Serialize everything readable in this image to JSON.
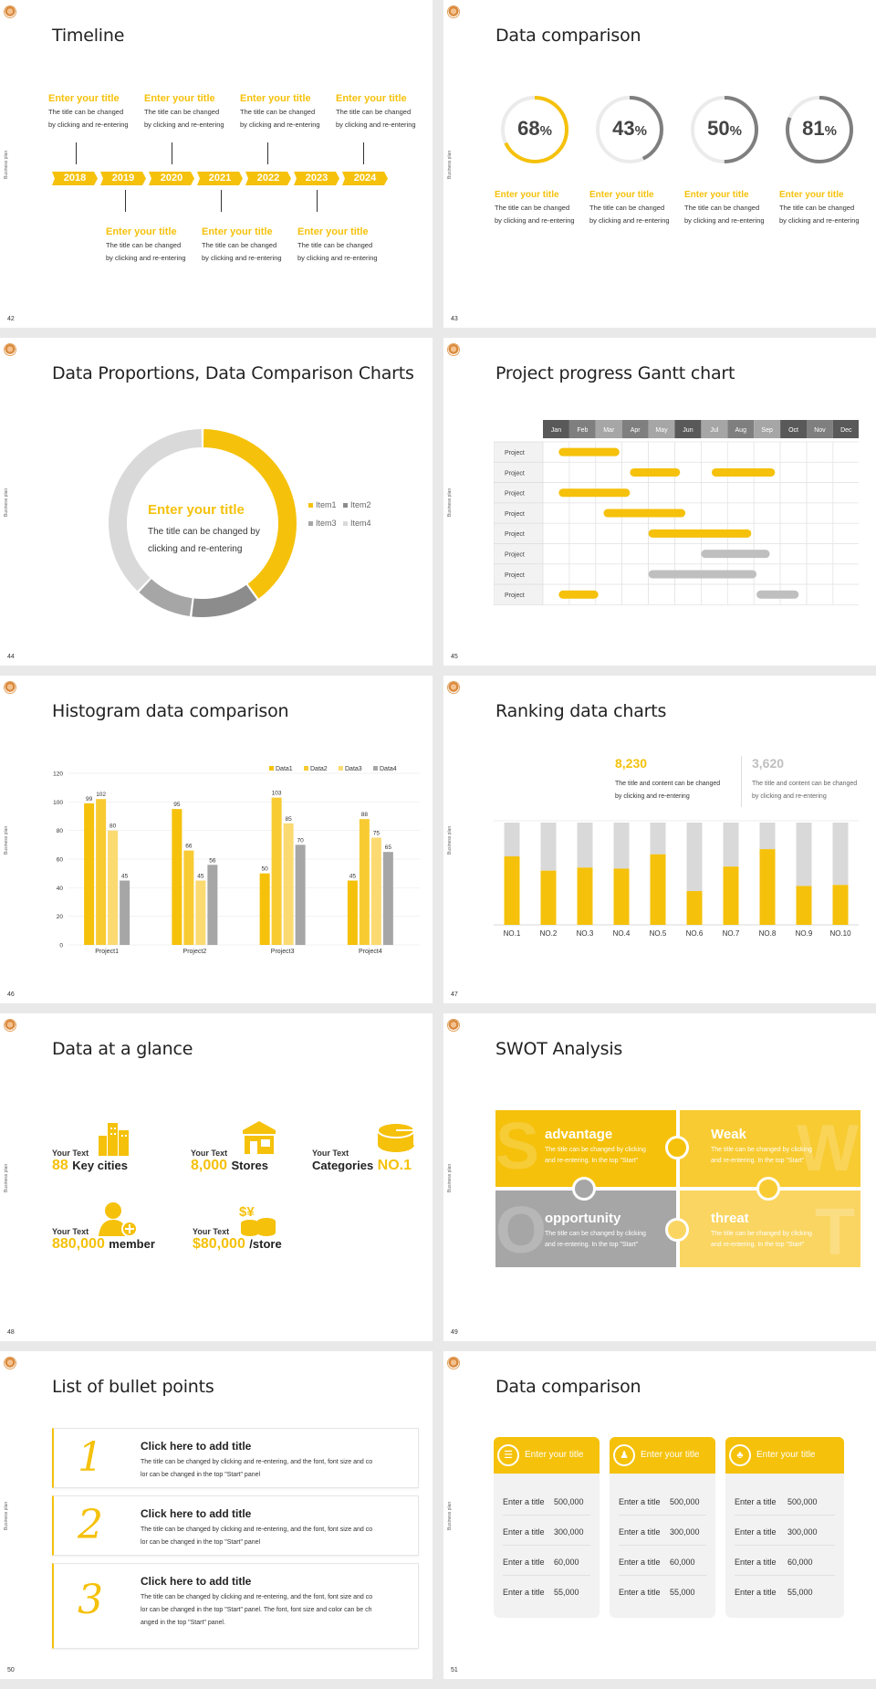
{
  "common": {
    "side_label": "Business plan",
    "colors": {
      "yellow": "#f5c10b",
      "yellow_light": "#fad561",
      "yellow_pale": "#fbe08a",
      "gray": "#a6a6a6",
      "gray_dark": "#858585",
      "gray_light": "#d9d9d9"
    }
  },
  "s42": {
    "page": "42",
    "title": "Timeline",
    "years": [
      "2018",
      "2019",
      "2020",
      "2021",
      "2022",
      "2023",
      "2024"
    ],
    "top_items": [
      {
        "title": "Enter your title",
        "text1": "The title can be changed",
        "text2": "by clicking and re-entering"
      },
      {
        "title": "Enter your title",
        "text1": "The title can be changed",
        "text2": "by clicking and re-entering"
      },
      {
        "title": "Enter your title",
        "text1": "The title can be changed",
        "text2": "by clicking and re-entering"
      },
      {
        "title": "Enter your title",
        "text1": "The title can be changed",
        "text2": "by clicking and re-entering"
      }
    ],
    "bottom_items": [
      {
        "title": "Enter your title",
        "text1": "The title can be changed",
        "text2": "by clicking and re-entering"
      },
      {
        "title": "Enter your title",
        "text1": "The title can be changed",
        "text2": "by clicking and re-entering"
      },
      {
        "title": "Enter your title",
        "text1": "The title can be changed",
        "text2": "by clicking and re-entering"
      }
    ]
  },
  "s43": {
    "page": "43",
    "title": "Data comparison",
    "rings": [
      {
        "value": "68",
        "pct": 68,
        "color": "#f5c10b",
        "title": "Enter your title",
        "text1": "The title can be changed",
        "text2": "by clicking and re-entering"
      },
      {
        "value": "43",
        "pct": 43,
        "color": "#7f7f7f",
        "title": "Enter your title",
        "text1": "The title can be changed",
        "text2": "by clicking and re-entering"
      },
      {
        "value": "50",
        "pct": 50,
        "color": "#7f7f7f",
        "title": "Enter your title",
        "text1": "The title can be changed",
        "text2": "by clicking and re-entering"
      },
      {
        "value": "81",
        "pct": 81,
        "color": "#7f7f7f",
        "title": "Enter your title",
        "text1": "The title can be changed",
        "text2": "by clicking and re-entering"
      }
    ],
    "pct_sign": "%"
  },
  "s44": {
    "page": "44",
    "title": "Data Proportions, Data Comparison Charts",
    "center_title": "Enter your title",
    "center_text1": "The title can be changed by",
    "center_text2": "clicking and re-entering",
    "legend": [
      "Item1",
      "Item2",
      "Item3",
      "Item4"
    ]
  },
  "s45": {
    "page": "45",
    "title": "Project progress Gantt chart",
    "months": [
      "Jan",
      "Feb",
      "Mar",
      "Apr",
      "May",
      "Jun",
      "Jul",
      "Aug",
      "Sep",
      "Oct",
      "Nov",
      "Dec"
    ],
    "row_label": "Project"
  },
  "s46": {
    "page": "46",
    "title": "Histogram data comparison"
  },
  "s47": {
    "page": "47",
    "title": "Ranking data charts",
    "stat1": "8,230",
    "stat1_text1": "The title and content can be changed",
    "stat1_text2": "by clicking and re-entering",
    "stat2": "3,620",
    "stat2_text1": "The title and content can be changed",
    "stat2_text2": "by clicking and re-entering"
  },
  "s48": {
    "page": "48",
    "title": "Data at a glance",
    "items": [
      {
        "label": "Your Text",
        "number": "88",
        "unit": "Key cities"
      },
      {
        "label": "Your Text",
        "number": "8,000",
        "unit": "Stores"
      },
      {
        "label": "Your Text",
        "number": "NO.1",
        "unit": "Categories"
      },
      {
        "label": "Your Text",
        "number": "880,000",
        "unit": "member"
      },
      {
        "label": "Your Text",
        "number": "$80,000",
        "unit": "/store"
      }
    ]
  },
  "s49": {
    "page": "49",
    "title": "SWOT Analysis",
    "cells": [
      {
        "title": "advantage",
        "letter": "S",
        "text1": "The title can be changed by clicking",
        "text2": "and re-entering. In the top \"Start\""
      },
      {
        "title": "Weak",
        "letter": "W",
        "text1": "The title can be changed by clicking",
        "text2": "and re-entering. In the top \"Start\""
      },
      {
        "title": "opportunity",
        "letter": "O",
        "text1": "The title can be changed by clicking",
        "text2": "and re-entering. In the top \"Start\""
      },
      {
        "title": "threat",
        "letter": "T",
        "text1": "The title can be changed by clicking",
        "text2": "and re-entering. In the top \"Start\""
      }
    ]
  },
  "s50": {
    "page": "50",
    "title": "List of bullet points",
    "items": [
      {
        "num": "1",
        "title": "Click here to add title",
        "lines": [
          "The title can be changed by clicking and re-entering, and the font, font size and co",
          "lor can be changed in the top \"Start\" panel"
        ]
      },
      {
        "num": "2",
        "title": "Click here to add title",
        "lines": [
          "The title can be changed by clicking and re-entering, and the font, font size and co",
          "lor can be changed in the top \"Start\" panel"
        ]
      },
      {
        "num": "3",
        "title": "Click here to add title",
        "lines": [
          "The title can be changed by clicking and re-entering, and the font, font size and co",
          "lor can be changed in the top \"Start\" panel. The font, font size and color can be ch",
          "anged in the top \"Start\" panel."
        ]
      }
    ]
  },
  "s51": {
    "page": "51",
    "title": "Data comparison",
    "cards": [
      {
        "header": "Enter your title",
        "rows": [
          [
            "Enter a title",
            "500,000"
          ],
          [
            "Enter a title",
            "300,000"
          ],
          [
            "Enter a title",
            "60,000"
          ],
          [
            "Enter a title",
            "55,000"
          ]
        ]
      },
      {
        "header": "Enter your title",
        "rows": [
          [
            "Enter a title",
            "500,000"
          ],
          [
            "Enter a title",
            "300,000"
          ],
          [
            "Enter a title",
            "60,000"
          ],
          [
            "Enter a title",
            "55,000"
          ]
        ]
      },
      {
        "header": "Enter your title",
        "rows": [
          [
            "Enter a title",
            "500,000"
          ],
          [
            "Enter a title",
            "300,000"
          ],
          [
            "Enter a title",
            "60,000"
          ],
          [
            "Enter a title",
            "55,000"
          ]
        ]
      }
    ]
  },
  "chart_data": [
    {
      "type": "pie",
      "categories": [
        "Item1",
        "Item2",
        "Item3",
        "Item4"
      ],
      "values": [
        40,
        12,
        10,
        38
      ],
      "title": ""
    },
    {
      "type": "bar",
      "categories": [
        "Project1",
        "Project2",
        "Project3",
        "Project4"
      ],
      "series": [
        {
          "name": "Data1",
          "values": [
            99,
            95,
            50,
            45
          ]
        },
        {
          "name": "Data2",
          "values": [
            102,
            66,
            103,
            88
          ]
        },
        {
          "name": "Data3",
          "values": [
            80,
            45,
            85,
            75
          ]
        },
        {
          "name": "Data4",
          "values": [
            45,
            56,
            70,
            65
          ]
        }
      ],
      "ylim": [
        0,
        120
      ],
      "yticks": [
        "0",
        "20",
        "40",
        "60",
        "80",
        "100",
        "120"
      ],
      "grid": true,
      "legend": "top-right"
    },
    {
      "type": "bar",
      "categories": [
        "NO.1",
        "NO.2",
        "NO.3",
        "NO.4",
        "NO.5",
        "NO.6",
        "NO.7",
        "NO.8",
        "NO.9",
        "NO.10"
      ],
      "values": [
        67,
        53,
        56,
        55,
        69,
        33,
        57,
        74,
        38,
        39
      ],
      "ylim": [
        0,
        100
      ],
      "stacked_remainder": true
    },
    {
      "type": "table",
      "title": "Project progress Gantt chart",
      "rows": [
        {
          "label": "Project",
          "start": 1.6,
          "end": 3.9,
          "color": "yellow"
        },
        {
          "label": "Project",
          "start": 4.3,
          "end": 6.2,
          "color": "yellow"
        },
        {
          "label": "Project",
          "start": 7.4,
          "end": 9.8,
          "color": "yellow"
        },
        {
          "label": "Project",
          "start": 1.6,
          "end": 4.3,
          "color": "yellow"
        },
        {
          "label": "Project",
          "start": 3.3,
          "end": 6.4,
          "color": "yellow"
        },
        {
          "label": "Project",
          "start": 5.0,
          "end": 8.9,
          "color": "yellow"
        },
        {
          "label": "Project",
          "start": 7.0,
          "end": 9.6,
          "color": "gray"
        },
        {
          "label": "Project",
          "start": 5.0,
          "end": 9.1,
          "color": "gray"
        },
        {
          "label": "Project",
          "start": 1.6,
          "end": 3.1,
          "color": "yellow"
        },
        {
          "label": "Project",
          "start": 9.1,
          "end": 10.7,
          "color": "gray"
        }
      ]
    }
  ]
}
